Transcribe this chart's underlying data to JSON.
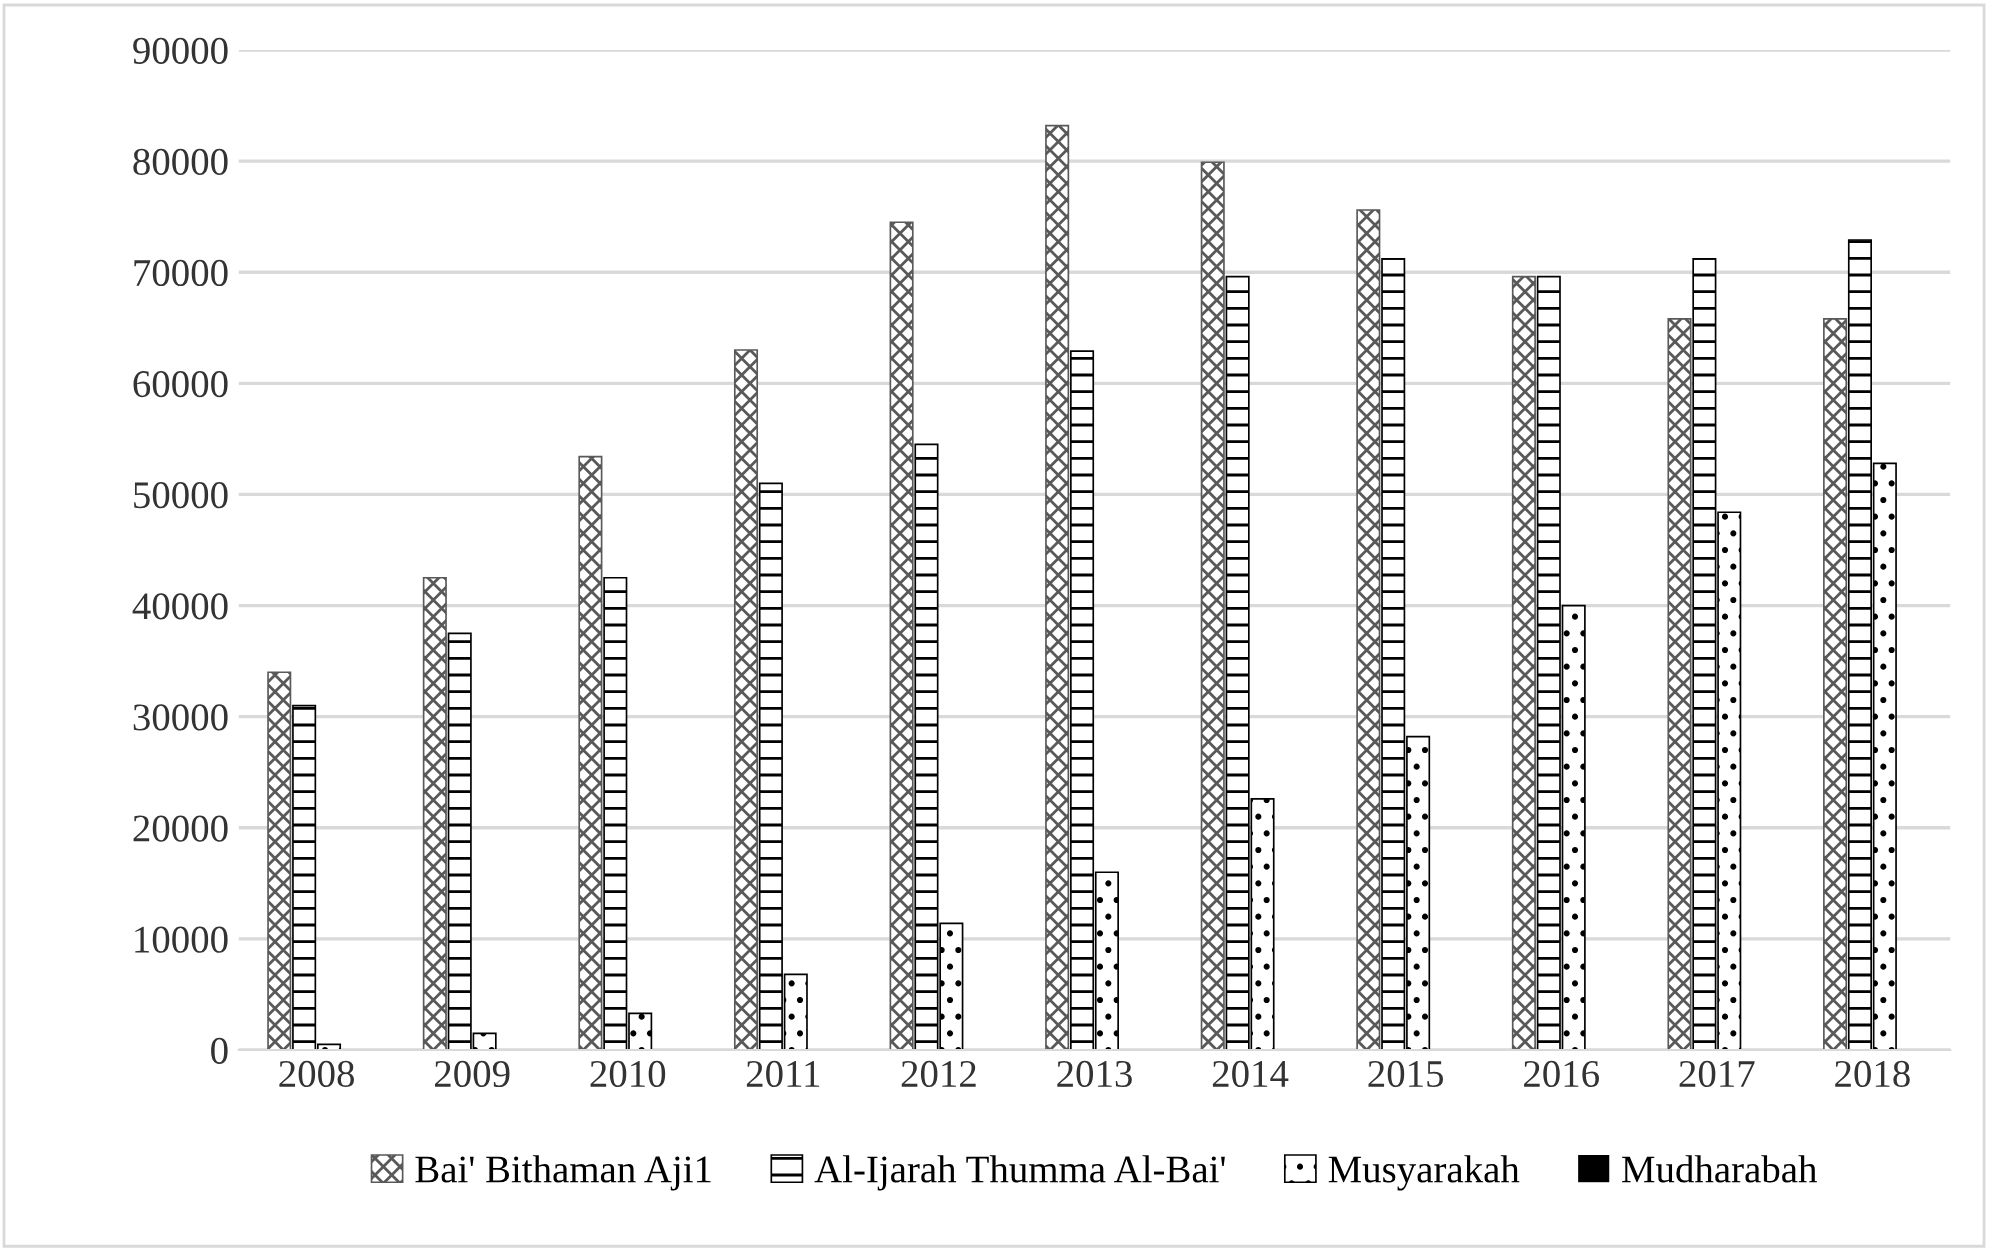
{
  "chart_data": {
    "type": "bar",
    "categories": [
      "2008",
      "2009",
      "2010",
      "2011",
      "2012",
      "2013",
      "2014",
      "2015",
      "2016",
      "2017",
      "2018"
    ],
    "series": [
      {
        "name": "Bai' Bithaman Aji1",
        "color": "#595959",
        "values": [
          34000,
          42500,
          53400,
          63000,
          74500,
          83200,
          79900,
          75600,
          69600,
          65800,
          65800
        ]
      },
      {
        "name": "Al-Ijarah Thumma Al-Bai'",
        "color": "#000000",
        "values": [
          31000,
          37500,
          42500,
          51000,
          54500,
          62900,
          69600,
          71200,
          69600,
          71200,
          72900
        ]
      },
      {
        "name": "Musyarakah",
        "color": "#000000",
        "values": [
          500,
          1500,
          3300,
          6800,
          11400,
          16000,
          22600,
          28200,
          40000,
          48400,
          52800
        ]
      },
      {
        "name": "Mudharabah",
        "color": "#000000",
        "values": [
          0,
          0,
          0,
          0,
          0,
          0,
          0,
          0,
          0,
          0,
          0
        ]
      }
    ],
    "ylim": [
      0,
      90000
    ],
    "yticks": [
      0,
      10000,
      20000,
      30000,
      40000,
      50000,
      60000,
      70000,
      80000,
      90000
    ],
    "grid": "y",
    "legend": "bottom"
  }
}
